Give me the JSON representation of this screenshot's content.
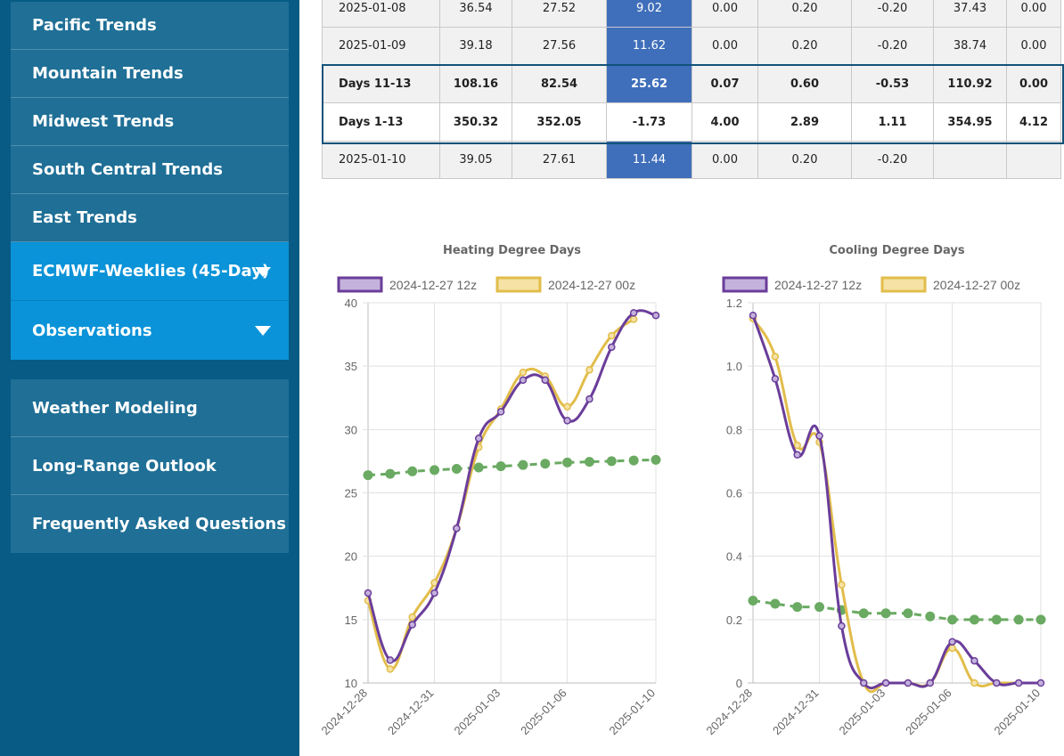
{
  "sidebar": {
    "items": [
      {
        "label": "Pacific Trends"
      },
      {
        "label": "Mountain Trends"
      },
      {
        "label": "Midwest Trends"
      },
      {
        "label": "South Central Trends"
      },
      {
        "label": "East Trends"
      },
      {
        "label": "ECMWF-Weeklies (45-Day)"
      },
      {
        "label": "Observations"
      }
    ],
    "lower_items": [
      {
        "label": "Weather Modeling"
      },
      {
        "label": "Long-Range Outlook"
      },
      {
        "label": "Frequently Asked Questions"
      }
    ]
  },
  "table": {
    "rows": [
      [
        "2025-01-08",
        "36.54",
        "27.52",
        "9.02",
        "0.00",
        "0.20",
        "-0.20",
        "37.43",
        "0.00"
      ],
      [
        "2025-01-09",
        "39.18",
        "27.56",
        "11.62",
        "0.00",
        "0.20",
        "-0.20",
        "38.74",
        "0.00"
      ],
      [
        "Days 11-13",
        "108.16",
        "82.54",
        "25.62",
        "0.07",
        "0.60",
        "-0.53",
        "110.92",
        "0.00"
      ],
      [
        "Days 1-13",
        "350.32",
        "352.05",
        "-1.73",
        "4.00",
        "2.89",
        "1.11",
        "354.95",
        "4.12"
      ],
      [
        "2025-01-10",
        "39.05",
        "27.61",
        "11.44",
        "0.00",
        "0.20",
        "-0.20",
        "",
        ""
      ]
    ]
  },
  "chart_data": [
    {
      "type": "line",
      "title": "Heating Degree Days",
      "x": [
        "2024-12-28",
        "2024-12-29",
        "2024-12-30",
        "2024-12-31",
        "2025-01-01",
        "2025-01-02",
        "2025-01-03",
        "2025-01-04",
        "2025-01-05",
        "2025-01-06",
        "2025-01-07",
        "2025-01-08",
        "2025-01-09",
        "2025-01-10"
      ],
      "xticks": [
        "2024-12-28",
        "2024-12-31",
        "2025-01-03",
        "2025-01-06",
        "2025-01-10"
      ],
      "ylim": [
        10,
        40
      ],
      "yticks": [
        10,
        15,
        20,
        25,
        30,
        35,
        40
      ],
      "grid": true,
      "legend": "top",
      "series": [
        {
          "name": "2024-12-27 12z",
          "color": "#6a3d9a",
          "fill": "#c4b2dd",
          "values": [
            17.1,
            11.8,
            14.6,
            17.1,
            22.2,
            29.3,
            31.4,
            33.9,
            33.9,
            30.7,
            32.4,
            36.5,
            39.2,
            39.0
          ]
        },
        {
          "name": "2024-12-27 00z",
          "color": "#e2bd4b",
          "fill": "#f5e2a4",
          "values": [
            16.5,
            11.1,
            15.2,
            17.9,
            22.2,
            28.6,
            31.6,
            34.5,
            34.2,
            31.8,
            34.7,
            37.4,
            38.7,
            null
          ]
        },
        {
          "name": "",
          "color": "#6aaa62",
          "dashed": true,
          "values": [
            26.4,
            26.5,
            26.7,
            26.8,
            26.9,
            27.0,
            27.1,
            27.2,
            27.3,
            27.4,
            27.45,
            27.5,
            27.56,
            27.61
          ]
        }
      ]
    },
    {
      "type": "line",
      "title": "Cooling Degree Days",
      "x": [
        "2024-12-28",
        "2024-12-29",
        "2024-12-30",
        "2024-12-31",
        "2025-01-01",
        "2025-01-02",
        "2025-01-03",
        "2025-01-04",
        "2025-01-05",
        "2025-01-06",
        "2025-01-07",
        "2025-01-08",
        "2025-01-09",
        "2025-01-10"
      ],
      "xticks": [
        "2024-12-28",
        "2024-12-31",
        "2025-01-03",
        "2025-01-06",
        "2025-01-10"
      ],
      "ylim": [
        0,
        1.2
      ],
      "yticks": [
        0,
        0.2,
        0.4,
        0.6,
        0.8,
        1.0,
        1.2
      ],
      "ytick_labels": [
        "0",
        "0.2",
        "0.4",
        "0.6",
        "0.8",
        "1.0",
        "1.2"
      ],
      "grid": true,
      "legend": "top",
      "series": [
        {
          "name": "2024-12-27 12z",
          "color": "#6a3d9a",
          "fill": "#c4b2dd",
          "values": [
            1.16,
            0.96,
            0.72,
            0.78,
            0.18,
            0.0,
            0.0,
            0.0,
            0.0,
            0.13,
            0.07,
            0.0,
            0.0,
            0.0
          ]
        },
        {
          "name": "2024-12-27 00z",
          "color": "#e2bd4b",
          "fill": "#f5e2a4",
          "values": [
            1.15,
            1.03,
            0.75,
            0.76,
            0.31,
            0.0,
            0.0,
            0.0,
            0.0,
            0.11,
            0.0,
            0.0,
            0.0,
            null
          ]
        },
        {
          "name": "",
          "color": "#6aaa62",
          "dashed": true,
          "values": [
            0.26,
            0.25,
            0.24,
            0.24,
            0.23,
            0.22,
            0.22,
            0.22,
            0.21,
            0.2,
            0.2,
            0.2,
            0.2,
            0.2
          ]
        }
      ]
    }
  ]
}
